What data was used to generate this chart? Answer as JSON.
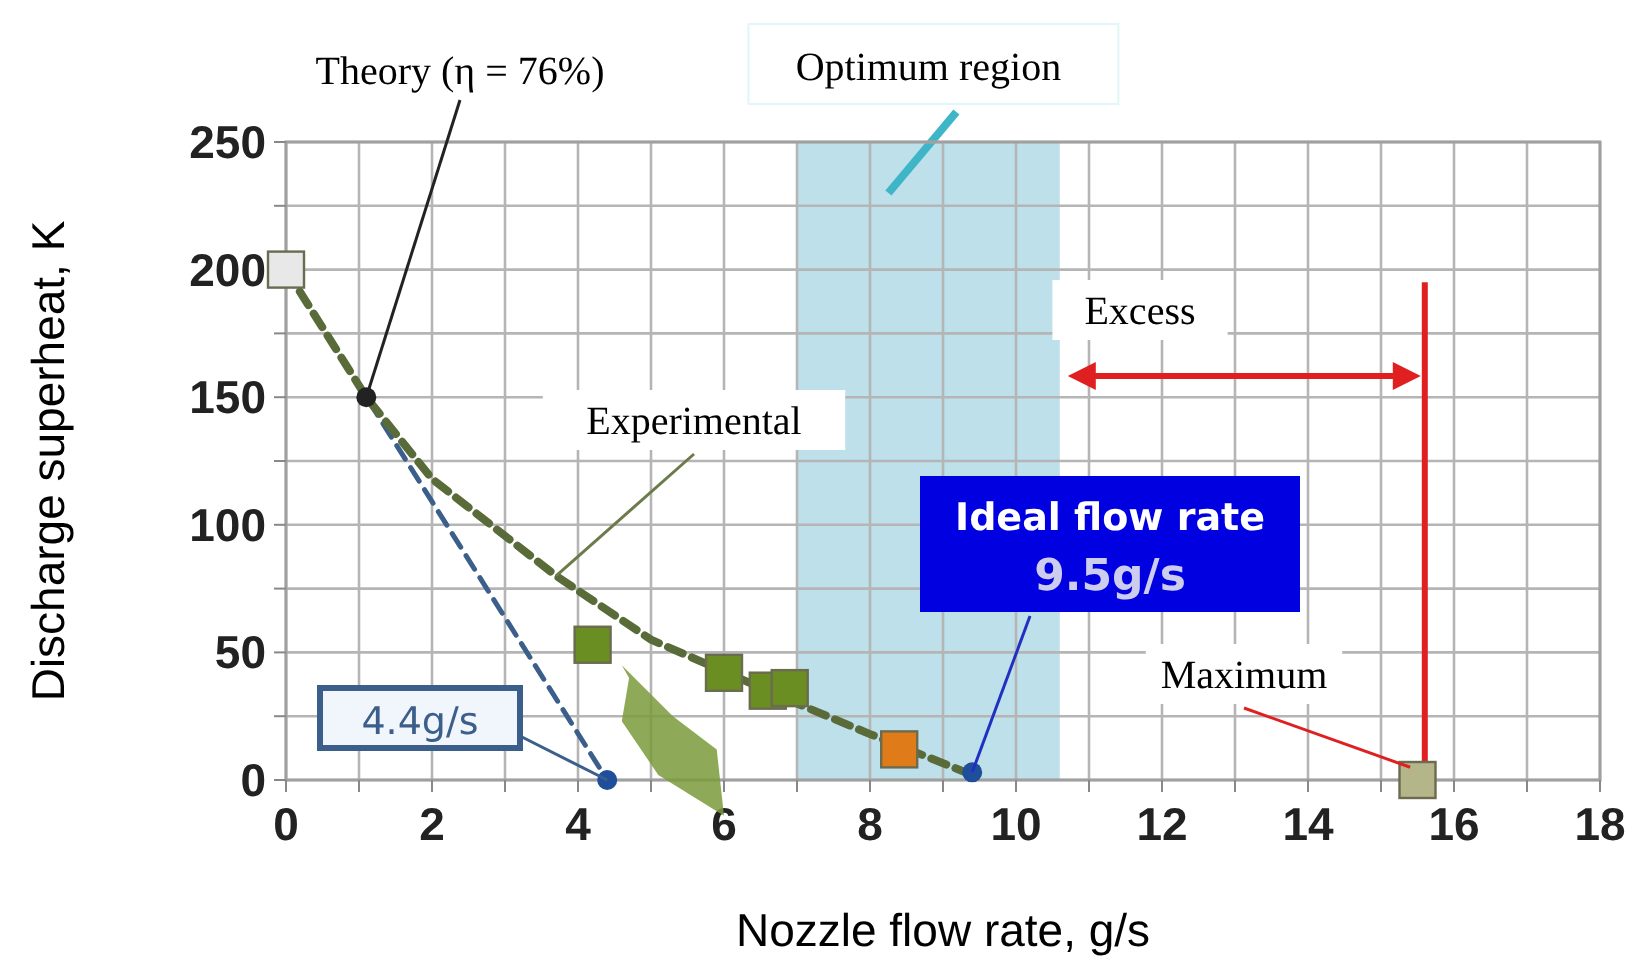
{
  "chart_data": {
    "type": "line",
    "xlabel": "Nozzle flow rate, g/s",
    "ylabel": "Discharge superheat, K",
    "xlim": [
      0,
      18
    ],
    "ylim": [
      0,
      250
    ],
    "xticks": [
      0,
      {
        "value": 1,
        "label": null
      },
      2,
      {
        "value": 3,
        "label": null
      },
      4,
      {
        "value": 5,
        "label": null
      },
      6,
      {
        "value": 7,
        "label": null
      },
      8,
      {
        "value": 9,
        "label": null
      },
      10,
      {
        "value": 11,
        "label": null
      },
      12,
      {
        "value": 13,
        "label": null
      },
      14,
      {
        "value": 15,
        "label": null
      },
      16,
      {
        "value": 17,
        "label": null
      },
      18
    ],
    "yticks": [
      0,
      {
        "value": 25,
        "label": null
      },
      50,
      {
        "value": 75,
        "label": null
      },
      100,
      {
        "value": 125,
        "label": null
      },
      150,
      {
        "value": 175,
        "label": null
      },
      200,
      {
        "value": 225,
        "label": null
      },
      250
    ],
    "grid": true,
    "series": [
      {
        "color": "#3b5f8a",
        "line_style": "dashed",
        "marker": "none",
        "x": [
          0,
          4.4
        ],
        "values": [
          200,
          0
        ]
      },
      {
        "color": "#5a6b3a",
        "line_style": "dashed",
        "marker": "none",
        "x": [
          0,
          1.1,
          2,
          3.7,
          5,
          7,
          8,
          9.4
        ],
        "values": [
          200,
          150,
          118,
          80,
          55,
          30,
          18,
          2
        ]
      },
      {
        "type": "scatter",
        "marker": "square",
        "x": [
          0,
          4.2,
          6,
          6.6,
          6.9,
          8.4,
          15.5
        ],
        "values": [
          200,
          53,
          42,
          35,
          36,
          12,
          0
        ],
        "colors": [
          "#e8e8e8",
          "#6b8e23",
          "#6b8e23",
          "#6b8e23",
          "#6b8e23",
          "#e07b1a",
          "#b5b58a"
        ]
      },
      {
        "type": "scatter",
        "color": "#1f4e9a",
        "marker": "circle",
        "x": [
          4.4,
          9.4
        ],
        "values": [
          0,
          3
        ]
      },
      {
        "type": "scatter",
        "color": "#222222",
        "marker": "circle",
        "x": [
          1.1
        ],
        "values": [
          150
        ]
      }
    ],
    "bands": [
      {
        "axis": "x",
        "from": 7,
        "to": 10.6,
        "label": "Optimum region",
        "color": "#add8e6"
      }
    ],
    "ref_lines": [
      {
        "axis": "x",
        "value": 15.6,
        "color": "#e02020",
        "line_style": "solid"
      }
    ],
    "annotations": [
      {
        "text": "Theory (η = 76%)",
        "x": 1.1,
        "y": 150
      },
      {
        "text": "Experimental",
        "x": 3.7,
        "y": 80
      },
      {
        "text": "4.4g/s",
        "x": 4.4,
        "y": 0
      },
      {
        "text": "Ideal flow rate\n9.5g/s",
        "x": 9.4,
        "y": 3
      },
      {
        "text": "Maximum",
        "x": 15.4,
        "y": 5
      },
      "Excess"
    ]
  }
}
